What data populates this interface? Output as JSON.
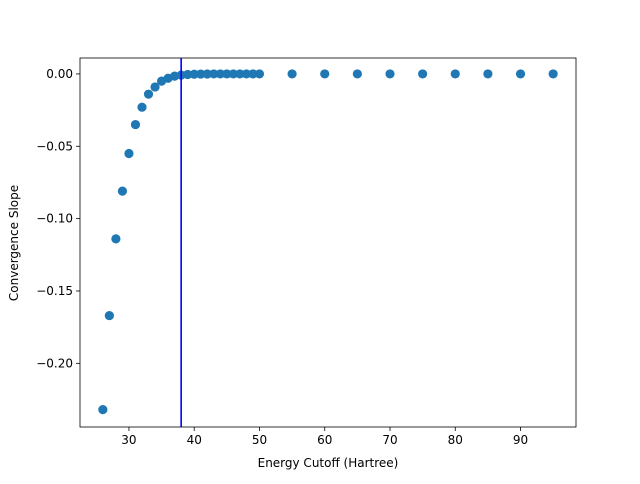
{
  "chart_data": {
    "type": "scatter",
    "title": "",
    "xlabel": "Energy Cutoff (Hartree)",
    "ylabel": "Convergence Slope",
    "xlim": [
      22.5,
      98.5
    ],
    "ylim": [
      -0.244,
      0.011
    ],
    "x_ticks": [
      30,
      40,
      50,
      60,
      70,
      80,
      90
    ],
    "x_tick_labels": [
      "30",
      "40",
      "50",
      "60",
      "70",
      "80",
      "90"
    ],
    "y_ticks": [
      0.0,
      -0.05,
      -0.1,
      -0.15,
      -0.2
    ],
    "y_tick_labels": [
      "0.00",
      "−0.05",
      "−0.10",
      "−0.15",
      "−0.20"
    ],
    "grid": false,
    "legend": "none",
    "point_color": "#1f77b4",
    "series": [
      {
        "x": [
          26,
          27,
          28,
          29,
          30,
          31,
          32,
          33,
          34,
          35,
          36,
          37,
          38,
          39,
          40,
          41,
          42,
          43,
          44,
          45,
          46,
          47,
          48,
          49,
          50,
          55,
          60,
          65,
          70,
          75,
          80,
          85,
          90,
          95
        ],
        "y": [
          -0.232,
          -0.167,
          -0.114,
          -0.081,
          -0.055,
          -0.035,
          -0.023,
          -0.014,
          -0.009,
          -0.005,
          -0.003,
          -0.0015,
          -0.0008,
          -0.0004,
          -0.0002,
          -0.0001,
          -5e-05,
          0,
          0,
          0,
          0,
          0,
          0,
          0,
          0,
          0,
          0,
          0,
          0,
          0,
          0,
          0,
          0,
          0
        ]
      }
    ],
    "vline": {
      "x": 38,
      "color": "#0000ff"
    }
  }
}
